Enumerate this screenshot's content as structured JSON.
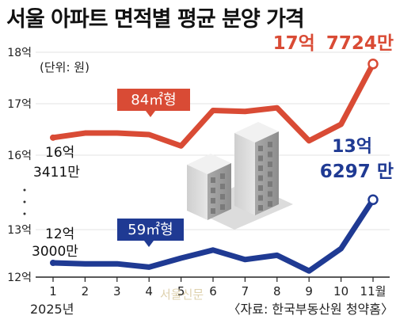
{
  "title": "서울 아파트 면적별 평균 분양 가격",
  "unit_note": "(단위: 원)",
  "year_label": "2025년",
  "source": "〈자료: 한국부동산원 청약홈〉",
  "watermark": "서울신문",
  "colors": {
    "series_84": "#d94b35",
    "series_59": "#1f3a93",
    "grid": "#e3e3e3",
    "axis": "#222222"
  },
  "labels": {
    "end_84_a": "17억",
    "end_84_b": "7724만",
    "end_59_line1": "13억",
    "end_59_a": "6297",
    "end_59_b": "만",
    "start_84_line1": "16억",
    "start_84_line2": "3411만",
    "start_59_line1": "12억",
    "start_59_line2": "3000만"
  },
  "chart_data": {
    "type": "line",
    "categories": [
      "1",
      "2",
      "3",
      "4",
      "5",
      "6",
      "7",
      "8",
      "9",
      "10",
      "11월"
    ],
    "y_tick_labels": [
      "12억",
      "13억",
      "16억",
      "17억",
      "18억"
    ],
    "axis_break": true,
    "series": [
      {
        "name": "84㎡형",
        "values": [
          163411,
          164300,
          164300,
          164000,
          161800,
          168700,
          168500,
          169200,
          162800,
          166000,
          177724
        ]
      },
      {
        "name": "59㎡형",
        "values": [
          123000,
          122800,
          122800,
          122100,
          124000,
          125700,
          123700,
          124600,
          121300,
          126000,
          136297
        ]
      }
    ],
    "value_unit": "만원"
  }
}
